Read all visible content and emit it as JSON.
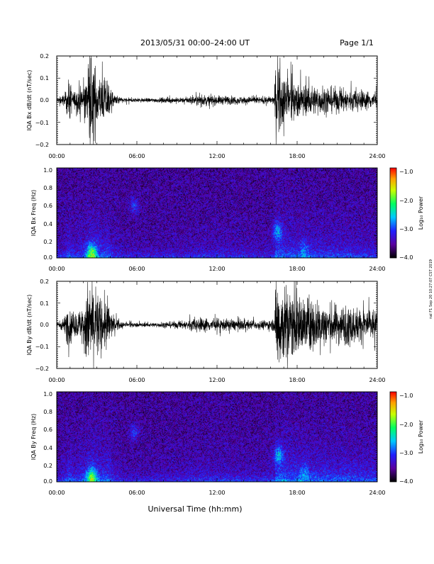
{
  "header": {
    "title": "2013/05/31  00:00–24:00 UT",
    "page": "Page 1/1"
  },
  "xlabel": "Universal Time (hh:mm)",
  "side_note": "nal F1 Sep 20 10:27:07 CST 2019",
  "chart_data": [
    {
      "type": "line",
      "ylabel": "IQA Bx dB/dt (nT/sec)",
      "xlim": [
        0,
        24
      ],
      "ylim": [
        -0.2,
        0.2
      ],
      "x_ticks": [
        "00:00",
        "06:00",
        "12:00",
        "18:00",
        "24:00"
      ],
      "y_ticks": [
        "0.2",
        "0.1",
        "0.0",
        "−0.1",
        "−0.2"
      ],
      "activity": [
        {
          "t": 0.0,
          "amp": 0.012
        },
        {
          "t": 0.6,
          "amp": 0.03
        },
        {
          "t": 0.8,
          "amp": 0.08
        },
        {
          "t": 1.0,
          "amp": 0.1
        },
        {
          "t": 1.2,
          "amp": 0.04
        },
        {
          "t": 1.8,
          "amp": 0.06
        },
        {
          "t": 2.2,
          "amp": 0.12
        },
        {
          "t": 2.6,
          "amp": 0.22
        },
        {
          "t": 3.0,
          "amp": 0.15
        },
        {
          "t": 3.4,
          "amp": 0.1
        },
        {
          "t": 3.8,
          "amp": 0.12
        },
        {
          "t": 4.2,
          "amp": 0.03
        },
        {
          "t": 5.0,
          "amp": 0.012
        },
        {
          "t": 7.0,
          "amp": 0.01
        },
        {
          "t": 8.5,
          "amp": 0.014
        },
        {
          "t": 9.5,
          "amp": 0.012
        },
        {
          "t": 10.0,
          "amp": 0.02
        },
        {
          "t": 11.0,
          "amp": 0.025
        },
        {
          "t": 12.0,
          "amp": 0.022
        },
        {
          "t": 13.5,
          "amp": 0.02
        },
        {
          "t": 15.0,
          "amp": 0.016
        },
        {
          "t": 16.3,
          "amp": 0.02
        },
        {
          "t": 16.4,
          "amp": 0.2
        },
        {
          "t": 17.0,
          "amp": 0.12
        },
        {
          "t": 17.5,
          "amp": 0.1
        },
        {
          "t": 18.0,
          "amp": 0.08
        },
        {
          "t": 19.5,
          "amp": 0.07
        },
        {
          "t": 21.0,
          "amp": 0.06
        },
        {
          "t": 22.5,
          "amp": 0.05
        },
        {
          "t": 24.0,
          "amp": 0.04
        }
      ]
    },
    {
      "type": "heatmap",
      "ylabel": "IQA Bx Freq (Hz)",
      "xlim": [
        0,
        24
      ],
      "ylim": [
        0,
        1.0
      ],
      "x_ticks": [
        "00:00",
        "06:00",
        "12:00",
        "18:00",
        "24:00"
      ],
      "y_ticks": [
        "1.0",
        "0.8",
        "0.6",
        "0.4",
        "0.2",
        "0.0"
      ],
      "colorbar": {
        "label": "Log₁₀ Power",
        "ticks": [
          "−1.0",
          "−2.0",
          "−3.0",
          "−4.0"
        ],
        "range": [
          -4.0,
          -1.0
        ]
      },
      "features": [
        {
          "t": 5.8,
          "f": 0.58,
          "level": -3.0
        },
        {
          "t": 16.5,
          "f": 0.3,
          "level": -2.6
        },
        {
          "t": 2.6,
          "f": 0.05,
          "level": -2.0
        },
        {
          "t": 18.5,
          "f": 0.1,
          "level": -3.0
        }
      ]
    },
    {
      "type": "line",
      "ylabel": "IQA By dB/dt (nT/sec)",
      "xlim": [
        0,
        24
      ],
      "ylim": [
        -0.2,
        0.2
      ],
      "x_ticks": [
        "00:00",
        "06:00",
        "12:00",
        "18:00",
        "24:00"
      ],
      "y_ticks": [
        "0.2",
        "0.1",
        "0.0",
        "−0.1",
        "−0.2"
      ],
      "activity": [
        {
          "t": 0.0,
          "amp": 0.012
        },
        {
          "t": 0.6,
          "amp": 0.04
        },
        {
          "t": 0.8,
          "amp": 0.1
        },
        {
          "t": 1.0,
          "amp": 0.12
        },
        {
          "t": 1.2,
          "amp": 0.05
        },
        {
          "t": 1.8,
          "amp": 0.08
        },
        {
          "t": 2.2,
          "amp": 0.18
        },
        {
          "t": 2.6,
          "amp": 0.25
        },
        {
          "t": 3.0,
          "amp": 0.18
        },
        {
          "t": 3.4,
          "amp": 0.12
        },
        {
          "t": 3.8,
          "amp": 0.14
        },
        {
          "t": 4.2,
          "amp": 0.04
        },
        {
          "t": 5.0,
          "amp": 0.012
        },
        {
          "t": 7.0,
          "amp": 0.01
        },
        {
          "t": 8.5,
          "amp": 0.016
        },
        {
          "t": 9.5,
          "amp": 0.02
        },
        {
          "t": 10.0,
          "amp": 0.03
        },
        {
          "t": 11.0,
          "amp": 0.035
        },
        {
          "t": 12.0,
          "amp": 0.03
        },
        {
          "t": 13.5,
          "amp": 0.028
        },
        {
          "t": 15.0,
          "amp": 0.02
        },
        {
          "t": 16.3,
          "amp": 0.03
        },
        {
          "t": 16.4,
          "amp": 0.25
        },
        {
          "t": 17.0,
          "amp": 0.2
        },
        {
          "t": 17.5,
          "amp": 0.18
        },
        {
          "t": 18.0,
          "amp": 0.15
        },
        {
          "t": 19.5,
          "amp": 0.12
        },
        {
          "t": 21.0,
          "amp": 0.1
        },
        {
          "t": 22.5,
          "amp": 0.09
        },
        {
          "t": 24.0,
          "amp": 0.08
        }
      ]
    },
    {
      "type": "heatmap",
      "ylabel": "IQA By Freq (Hz)",
      "xlim": [
        0,
        24
      ],
      "ylim": [
        0,
        1.0
      ],
      "x_ticks": [
        "00:00",
        "06:00",
        "12:00",
        "18:00",
        "24:00"
      ],
      "y_ticks": [
        "1.0",
        "0.8",
        "0.6",
        "0.4",
        "0.2",
        "0.0"
      ],
      "colorbar": {
        "label": "Log₁₀ Power",
        "ticks": [
          "−1.0",
          "−2.0",
          "−3.0",
          "−4.0"
        ],
        "range": [
          -4.0,
          -1.0
        ]
      },
      "features": [
        {
          "t": 5.8,
          "f": 0.55,
          "level": -3.0
        },
        {
          "t": 16.6,
          "f": 0.3,
          "level": -2.6
        },
        {
          "t": 2.6,
          "f": 0.05,
          "level": -2.0
        },
        {
          "t": 18.5,
          "f": 0.1,
          "level": -3.0
        }
      ]
    }
  ],
  "colors": {
    "trace": "#000000",
    "background": "#ffffff"
  }
}
